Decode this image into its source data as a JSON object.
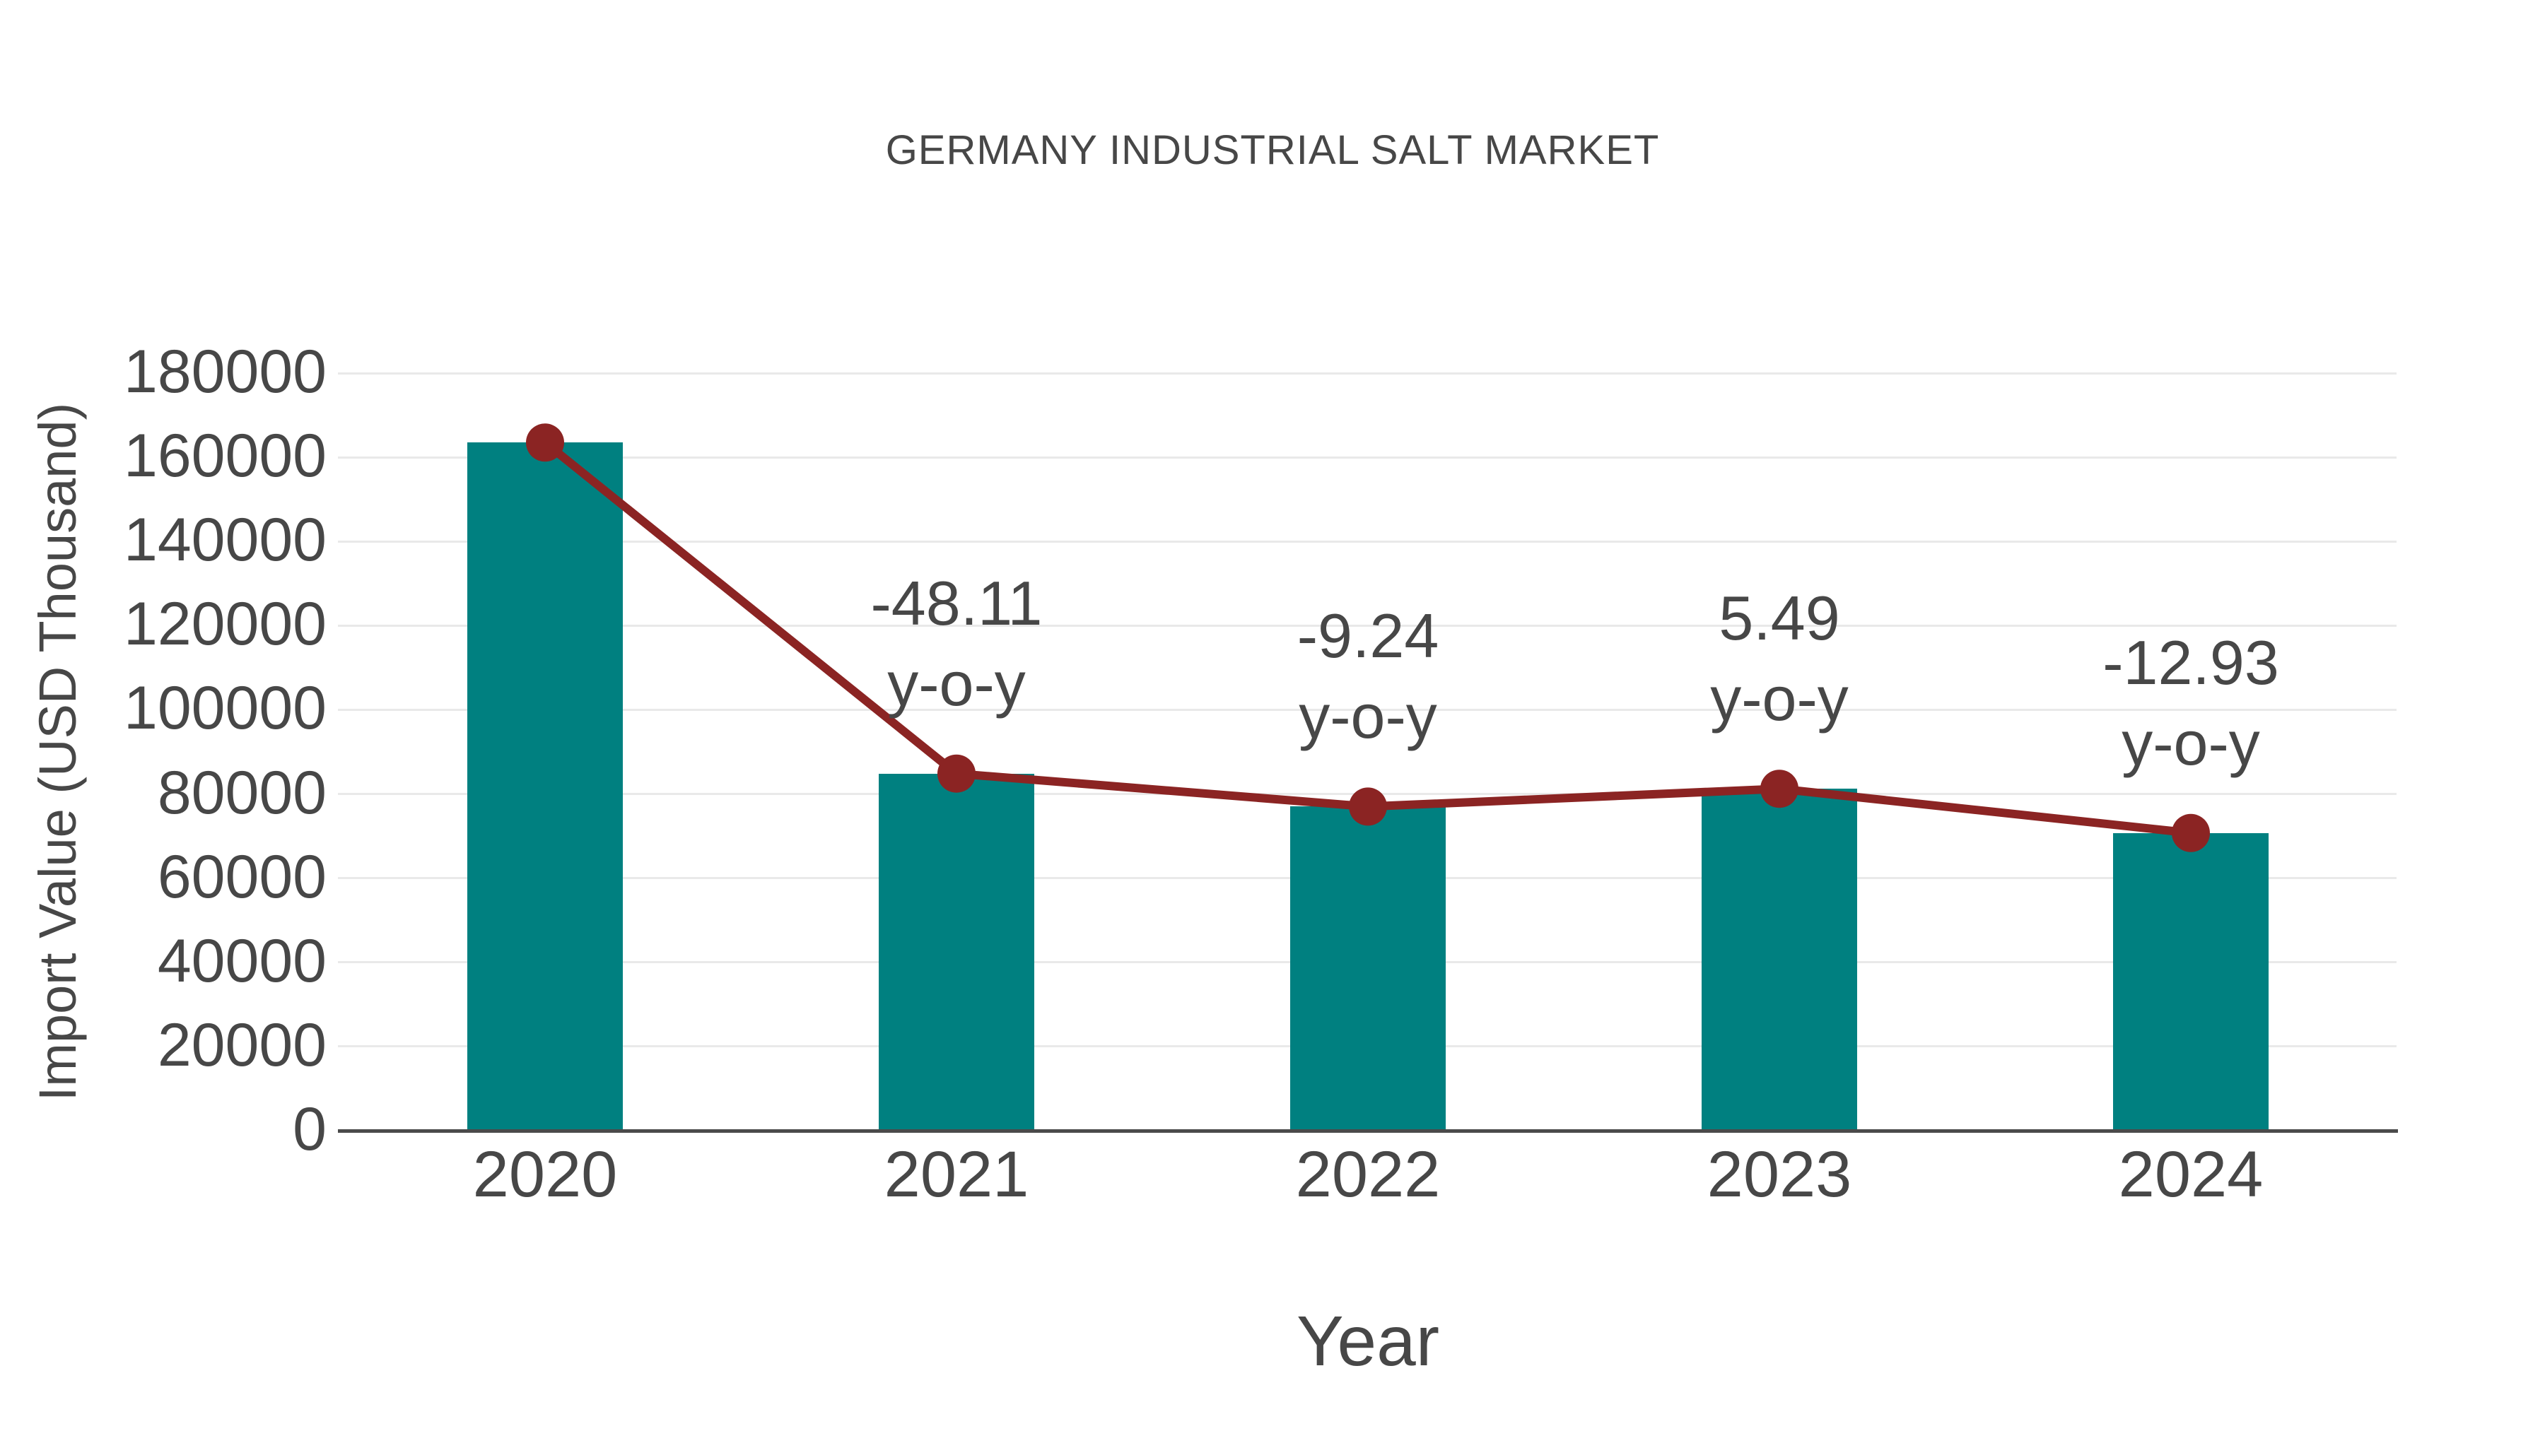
{
  "chart_data": {
    "type": "bar",
    "title": "GERMANY INDUSTRIAL SALT MARKET",
    "categories": [
      "2020",
      "2021",
      "2022",
      "2023",
      "2024"
    ],
    "series": [
      {
        "name": "import-value-bars",
        "type": "bar",
        "values": [
          163500,
          84840,
          77000,
          81230,
          70730
        ],
        "color": "#008080"
      },
      {
        "name": "import-value-trend-line",
        "type": "line",
        "values": [
          163500,
          84840,
          77000,
          81230,
          70730
        ],
        "color": "#8B2423"
      }
    ],
    "annotations": [
      {
        "category": "2021",
        "value": "-48.11",
        "suffix": "y-o-y"
      },
      {
        "category": "2022",
        "value": "-9.24",
        "suffix": "y-o-y"
      },
      {
        "category": "2023",
        "value": "5.49",
        "suffix": "y-o-y"
      },
      {
        "category": "2024",
        "value": "-12.93",
        "suffix": "y-o-y"
      }
    ],
    "xlabel": "Year",
    "ylabel": "Import Value (USD Thousand)",
    "ylim": [
      0,
      180000
    ],
    "yticks": [
      0,
      20000,
      40000,
      60000,
      80000,
      100000,
      120000,
      140000,
      160000,
      180000
    ],
    "grid": true,
    "legend": "none",
    "colors": {
      "bar": "#008080",
      "line": "#8B2423",
      "text": "#474747",
      "gridline": "#e9e9e9",
      "axis": "#4a4a4a",
      "background": "#ffffff"
    }
  }
}
